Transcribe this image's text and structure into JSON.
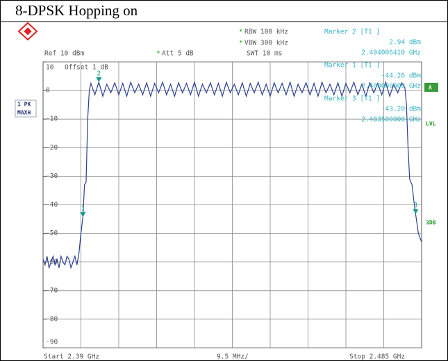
{
  "chart_data": {
    "type": "line",
    "title": "8-DPSK Hopping on",
    "header": {
      "star": "*",
      "rbw": "RBW 100 kHz",
      "vbw": "VBW 300 kHz",
      "ref": "Ref 10 dBm",
      "att": "Att 5 dB",
      "swt": "SWT 10 ms",
      "offset": "Offset 1 dB"
    },
    "trace_label": [
      "1 PK",
      "MAXH"
    ],
    "side_labels": [
      "A",
      "LVL",
      "3DB"
    ],
    "footer": {
      "start": "Start 2.39 GHz",
      "span": "9.5 MHz/",
      "stop": "Stop 2.485 GHz"
    },
    "markers": [
      {
        "name": "Marker 2 [T1 ]",
        "label": "2",
        "x": 2.40400641,
        "x_label": "2.404006410 GHz",
        "value": 2.94,
        "value_label": "2.94 dBm"
      },
      {
        "name": "Marker 1 [T1 ]",
        "label": "1",
        "x": 2.4,
        "x_label": "2.400000000 GHz",
        "value": -44.26,
        "value_label": "-44.26 dBm"
      },
      {
        "name": "Marker 3 [T1 ]",
        "label": "3",
        "x": 2.4835,
        "x_label": "2.483500000 GHz",
        "value": -43.2,
        "value_label": "-43.20 dBm"
      }
    ],
    "xlim": [
      2.39,
      2.485
    ],
    "x_divisions": 10,
    "ylim": [
      -90,
      10
    ],
    "yticks": [
      10,
      0,
      -10,
      -20,
      -30,
      -40,
      -50,
      -60,
      -70,
      -80,
      -90
    ],
    "grid": true,
    "x": [
      2.39,
      2.3905,
      2.391,
      2.3915,
      2.392,
      2.3925,
      2.393,
      2.3935,
      2.394,
      2.3945,
      2.395,
      2.3955,
      2.396,
      2.3965,
      2.397,
      2.3975,
      2.398,
      2.3985,
      2.399,
      2.3995,
      2.4,
      2.4004,
      2.4008,
      2.4012,
      2.4016,
      2.402,
      2.403,
      2.404,
      2.405,
      2.406,
      2.407,
      2.408,
      2.409,
      2.41,
      2.411,
      2.412,
      2.413,
      2.414,
      2.415,
      2.416,
      2.417,
      2.418,
      2.419,
      2.42,
      2.421,
      2.422,
      2.423,
      2.424,
      2.425,
      2.426,
      2.427,
      2.428,
      2.429,
      2.43,
      2.431,
      2.432,
      2.433,
      2.434,
      2.435,
      2.436,
      2.437,
      2.438,
      2.439,
      2.44,
      2.441,
      2.442,
      2.443,
      2.444,
      2.445,
      2.446,
      2.447,
      2.448,
      2.449,
      2.45,
      2.451,
      2.452,
      2.453,
      2.454,
      2.455,
      2.456,
      2.457,
      2.458,
      2.459,
      2.46,
      2.461,
      2.462,
      2.463,
      2.464,
      2.465,
      2.466,
      2.467,
      2.468,
      2.469,
      2.47,
      2.471,
      2.472,
      2.473,
      2.474,
      2.475,
      2.476,
      2.477,
      2.478,
      2.479,
      2.48,
      2.4808,
      2.4812,
      2.4816,
      2.482,
      2.4826,
      2.483,
      2.4835,
      2.4842,
      2.485
    ],
    "series": [
      {
        "color": "#2b3f91",
        "values": [
          -59,
          -61,
          -58,
          -62,
          -60,
          -58,
          -61,
          -59,
          -62,
          -58,
          -60,
          -61,
          -58,
          -59,
          -62,
          -60,
          -58,
          -61,
          -57,
          -50,
          -44.26,
          -33,
          -32,
          -10,
          0,
          2.5,
          -1.5,
          2.9,
          -2,
          2.2,
          -0.8,
          2.7,
          -1.5,
          2.5,
          -2,
          2.9,
          -0.8,
          2.2,
          -1.5,
          2.7,
          -2,
          2.5,
          -0.8,
          2.9,
          -1.5,
          2.2,
          -2,
          2.7,
          -0.8,
          2.5,
          -1.5,
          2.9,
          -2,
          2.2,
          -0.8,
          2.7,
          -1.5,
          2.5,
          -2,
          2.9,
          -0.8,
          2.2,
          -1.5,
          2.7,
          -2,
          2.5,
          -0.8,
          2.9,
          -1.5,
          2.2,
          -2,
          2.7,
          -0.8,
          2.5,
          -1.5,
          2.9,
          -2,
          2.2,
          -0.8,
          2.7,
          -1.5,
          2.5,
          -2,
          2.9,
          -0.8,
          2.2,
          -1.5,
          2.7,
          -2,
          2.5,
          -0.8,
          2.9,
          -1.5,
          2.2,
          -2,
          2.7,
          -0.8,
          2.5,
          -1.5,
          2.9,
          -2,
          2.2,
          -0.8,
          2.7,
          1,
          -5,
          -20,
          -31,
          -33,
          -38,
          -43.2,
          -50,
          -53
        ]
      }
    ]
  }
}
